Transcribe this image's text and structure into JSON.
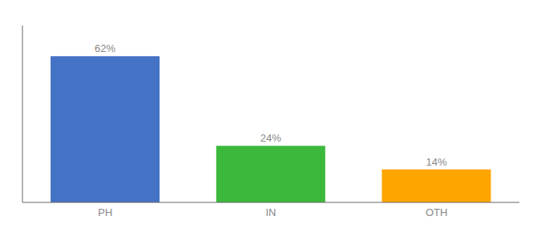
{
  "chart_data": {
    "type": "bar",
    "categories": [
      "PH",
      "IN",
      "OTH"
    ],
    "values": [
      62,
      24,
      14
    ],
    "value_labels": [
      "62%",
      "24%",
      "14%"
    ],
    "data_labels": true,
    "colors": [
      "#4472C4",
      "#3CB93C",
      "#FFA500"
    ],
    "ylim": [
      0,
      75
    ],
    "grid": false,
    "tick_labels": "x"
  }
}
